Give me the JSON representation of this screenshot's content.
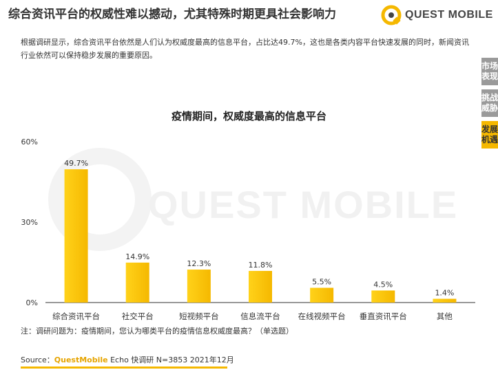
{
  "header": {
    "title": "综合资讯平台的权威性难以撼动，尤其特殊时期更具社会影响力",
    "brand": "QUEST MOBILE"
  },
  "description": "根据调研显示，综合资讯平台依然是人们认为权威度最高的信息平台，占比达49.7%，这也是各类内容平台快速发展的同时，新闻资讯行业依然可以保持稳步发展的重要原因。",
  "side_tabs": [
    {
      "label": "市场表现",
      "active": false
    },
    {
      "label": "挑战威胁",
      "active": false
    },
    {
      "label": "发展机遇",
      "active": true
    }
  ],
  "watermark": "QUEST MOBILE",
  "chart_data": {
    "type": "bar",
    "title": "疫情期间，权威度最高的信息平台",
    "categories": [
      "综合资讯平台",
      "社交平台",
      "短视频平台",
      "信息流平台",
      "在线视频平台",
      "垂直资讯平台",
      "其他"
    ],
    "values": [
      49.7,
      14.9,
      12.3,
      11.8,
      5.5,
      4.5,
      1.4
    ],
    "value_labels": [
      "49.7%",
      "14.9%",
      "12.3%",
      "11.8%",
      "5.5%",
      "4.5%",
      "1.4%"
    ],
    "yticks": [
      "0%",
      "30%",
      "60%"
    ],
    "ytick_values": [
      0,
      30,
      60
    ],
    "ylim": [
      0,
      60
    ],
    "bar_color": "#f5b800",
    "grid": false
  },
  "note": "注：调研问题为：疫情期间，您认为哪类平台的疫情信息权威度最高？（单选题）",
  "source": {
    "prefix": "Source：",
    "brand": "QuestMobile",
    "rest": " Echo 快调研 N=3853 2021年12月"
  },
  "colors": {
    "accent": "#f5b800",
    "tab_inactive": "#9a9a9a"
  }
}
